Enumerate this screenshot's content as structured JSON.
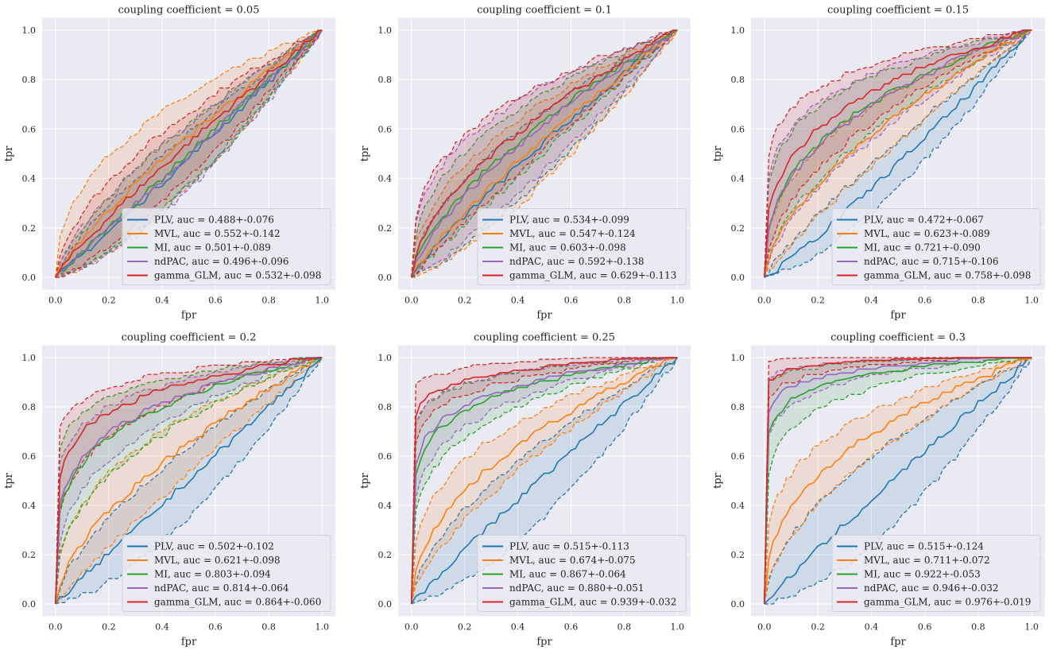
{
  "chart_data": [
    {
      "type": "line",
      "title": "coupling coefficient = 0.05",
      "xlabel": "fpr",
      "ylabel": "tpr",
      "xlim": [
        -0.05,
        1.05
      ],
      "ylim": [
        -0.05,
        1.05
      ],
      "grid": true,
      "legend": "lower-right",
      "series": [
        {
          "name": "PLV",
          "auc": 0.488,
          "std": 0.076,
          "label": "PLV, auc = 0.488+-0.076"
        },
        {
          "name": "MVL",
          "auc": 0.552,
          "std": 0.142,
          "label": "MVL, auc = 0.552+-0.142"
        },
        {
          "name": "MI",
          "auc": 0.501,
          "std": 0.089,
          "label": "MI, auc = 0.501+-0.089"
        },
        {
          "name": "ndPAC",
          "auc": 0.496,
          "std": 0.096,
          "label": "ndPAC, auc = 0.496+-0.096"
        },
        {
          "name": "gamma_GLM",
          "auc": 0.532,
          "std": 0.098,
          "label": "gamma_GLM, auc = 0.532+-0.098"
        }
      ]
    },
    {
      "type": "line",
      "title": "coupling coefficient = 0.1",
      "xlabel": "fpr",
      "ylabel": "tpr",
      "xlim": [
        -0.05,
        1.05
      ],
      "ylim": [
        -0.05,
        1.05
      ],
      "grid": true,
      "legend": "lower-right",
      "series": [
        {
          "name": "PLV",
          "auc": 0.534,
          "std": 0.099,
          "label": "PLV, auc = 0.534+-0.099"
        },
        {
          "name": "MVL",
          "auc": 0.547,
          "std": 0.124,
          "label": "MVL, auc = 0.547+-0.124"
        },
        {
          "name": "MI",
          "auc": 0.603,
          "std": 0.098,
          "label": "MI, auc = 0.603+-0.098"
        },
        {
          "name": "ndPAC",
          "auc": 0.592,
          "std": 0.138,
          "label": "ndPAC, auc = 0.592+-0.138"
        },
        {
          "name": "gamma_GLM",
          "auc": 0.629,
          "std": 0.113,
          "label": "gamma_GLM, auc = 0.629+-0.113"
        }
      ]
    },
    {
      "type": "line",
      "title": "coupling coefficient = 0.15",
      "xlabel": "fpr",
      "ylabel": "tpr",
      "xlim": [
        -0.05,
        1.05
      ],
      "ylim": [
        -0.05,
        1.05
      ],
      "grid": true,
      "legend": "lower-right",
      "series": [
        {
          "name": "PLV",
          "auc": 0.472,
          "std": 0.067,
          "label": "PLV, auc = 0.472+-0.067"
        },
        {
          "name": "MVL",
          "auc": 0.623,
          "std": 0.089,
          "label": "MVL, auc = 0.623+-0.089"
        },
        {
          "name": "MI",
          "auc": 0.721,
          "std": 0.09,
          "label": "MI, auc = 0.721+-0.090"
        },
        {
          "name": "ndPAC",
          "auc": 0.715,
          "std": 0.106,
          "label": "ndPAC, auc = 0.715+-0.106"
        },
        {
          "name": "gamma_GLM",
          "auc": 0.758,
          "std": 0.098,
          "label": "gamma_GLM, auc = 0.758+-0.098"
        }
      ]
    },
    {
      "type": "line",
      "title": "coupling coefficient = 0.2",
      "xlabel": "fpr",
      "ylabel": "tpr",
      "xlim": [
        -0.05,
        1.05
      ],
      "ylim": [
        -0.05,
        1.05
      ],
      "grid": true,
      "legend": "lower-right",
      "series": [
        {
          "name": "PLV",
          "auc": 0.502,
          "std": 0.102,
          "label": "PLV, auc = 0.502+-0.102"
        },
        {
          "name": "MVL",
          "auc": 0.621,
          "std": 0.098,
          "label": "MVL, auc = 0.621+-0.098"
        },
        {
          "name": "MI",
          "auc": 0.803,
          "std": 0.094,
          "label": "MI, auc = 0.803+-0.094"
        },
        {
          "name": "ndPAC",
          "auc": 0.814,
          "std": 0.064,
          "label": "ndPAC, auc = 0.814+-0.064"
        },
        {
          "name": "gamma_GLM",
          "auc": 0.864,
          "std": 0.06,
          "label": "gamma_GLM, auc = 0.864+-0.060"
        }
      ]
    },
    {
      "type": "line",
      "title": "coupling coefficient = 0.25",
      "xlabel": "fpr",
      "ylabel": "tpr",
      "xlim": [
        -0.05,
        1.05
      ],
      "ylim": [
        -0.05,
        1.05
      ],
      "grid": true,
      "legend": "lower-right",
      "series": [
        {
          "name": "PLV",
          "auc": 0.515,
          "std": 0.113,
          "label": "PLV, auc = 0.515+-0.113"
        },
        {
          "name": "MVL",
          "auc": 0.674,
          "std": 0.075,
          "label": "MVL, auc = 0.674+-0.075"
        },
        {
          "name": "MI",
          "auc": 0.867,
          "std": 0.064,
          "label": "MI, auc = 0.867+-0.064"
        },
        {
          "name": "ndPAC",
          "auc": 0.88,
          "std": 0.051,
          "label": "ndPAC, auc = 0.880+-0.051"
        },
        {
          "name": "gamma_GLM",
          "auc": 0.939,
          "std": 0.032,
          "label": "gamma_GLM, auc = 0.939+-0.032"
        }
      ]
    },
    {
      "type": "line",
      "title": "coupling coefficient = 0.3",
      "xlabel": "fpr",
      "ylabel": "tpr",
      "xlim": [
        -0.05,
        1.05
      ],
      "ylim": [
        -0.05,
        1.05
      ],
      "grid": true,
      "legend": "lower-right",
      "series": [
        {
          "name": "PLV",
          "auc": 0.515,
          "std": 0.124,
          "label": "PLV, auc = 0.515+-0.124"
        },
        {
          "name": "MVL",
          "auc": 0.711,
          "std": 0.072,
          "label": "MVL, auc = 0.711+-0.072"
        },
        {
          "name": "MI",
          "auc": 0.922,
          "std": 0.053,
          "label": "MI, auc = 0.922+-0.053"
        },
        {
          "name": "ndPAC",
          "auc": 0.946,
          "std": 0.032,
          "label": "ndPAC, auc = 0.946+-0.032"
        },
        {
          "name": "gamma_GLM",
          "auc": 0.976,
          "std": 0.019,
          "label": "gamma_GLM, auc = 0.976+-0.019"
        }
      ]
    }
  ],
  "ticks": [
    "0.0",
    "0.2",
    "0.4",
    "0.6",
    "0.8",
    "1.0"
  ],
  "colors": {
    "PLV": "#1f77b4",
    "MVL": "#ff7f0e",
    "MI": "#2ca02c",
    "ndPAC": "#9467bd",
    "gamma_GLM": "#d62728",
    "axes_bg": "#eaeaf2",
    "grid": "#ffffff"
  }
}
